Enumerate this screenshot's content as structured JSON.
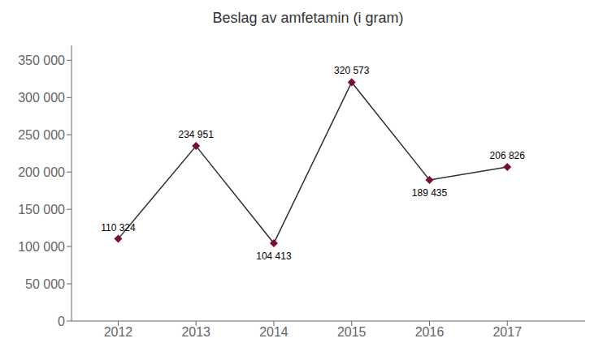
{
  "chart_data": {
    "type": "line",
    "title": "Beslag av amfetamin (i gram)",
    "x": [
      2012,
      2013,
      2014,
      2015,
      2016,
      2017
    ],
    "values": [
      110324,
      234951,
      104413,
      320573,
      189435,
      206826
    ],
    "value_labels": [
      "110 324",
      "234 951",
      "104 413",
      "320 573",
      "189 435",
      "206 826"
    ],
    "data_labels": true,
    "color": "#2d2d2d",
    "colors": [
      "#7b0e2a",
      "#7b0e2a",
      "#7b0e2a",
      "#7b0e2a",
      "#7b0e2a",
      "#7b0e2a"
    ],
    "marker": "diamond",
    "xlim": [
      2011.4,
      2018.0
    ],
    "xticks": [
      2012,
      2013,
      2014,
      2015,
      2016,
      2017
    ],
    "ylim": [
      0,
      370000
    ],
    "yticks": [
      0,
      {
        "value": 50000,
        "label": "50 000"
      },
      {
        "value": 100000,
        "label": "100 000"
      },
      {
        "value": 150000,
        "label": "150 000"
      },
      {
        "value": 200000,
        "label": "200 000"
      },
      {
        "value": 250000,
        "label": "250 000"
      },
      {
        "value": 300000,
        "label": "300 000"
      },
      {
        "value": 350000,
        "label": "350 000"
      }
    ],
    "grid": false
  }
}
